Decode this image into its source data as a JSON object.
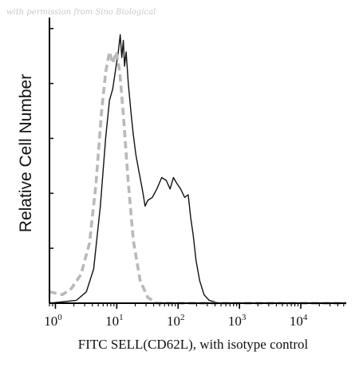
{
  "watermark": "with permission from Sino Biological",
  "chart_data": {
    "type": "line",
    "xlabel": "FITC SELL(CD62L), with isotype control",
    "ylabel": "Relative Cell Number",
    "xscale": "log",
    "xlim": [
      0.8,
      55000
    ],
    "ylim": [
      0,
      100
    ],
    "x_ticks": [
      {
        "base": "10",
        "exp": "0",
        "value": 1
      },
      {
        "base": "10",
        "exp": "1",
        "value": 10
      },
      {
        "base": "10",
        "exp": "2",
        "value": 100
      },
      {
        "base": "10",
        "exp": "3",
        "value": 1000
      },
      {
        "base": "10",
        "exp": "4",
        "value": 10000
      }
    ],
    "grid": false,
    "series": [
      {
        "style": "solid",
        "color": "#111111",
        "points": [
          [
            0.8,
            0
          ],
          [
            2.2,
            1
          ],
          [
            3.2,
            4
          ],
          [
            4.2,
            12
          ],
          [
            5.4,
            34
          ],
          [
            6.6,
            58
          ],
          [
            7.6,
            71
          ],
          [
            8.6,
            75
          ],
          [
            9.6,
            82
          ],
          [
            10.6,
            88
          ],
          [
            11.4,
            94
          ],
          [
            12.1,
            86
          ],
          [
            12.8,
            92
          ],
          [
            13.4,
            83
          ],
          [
            14.2,
            88
          ],
          [
            15.4,
            77
          ],
          [
            17,
            67
          ],
          [
            18.6,
            59
          ],
          [
            20.5,
            52
          ],
          [
            23,
            46
          ],
          [
            26,
            40
          ],
          [
            29,
            34
          ],
          [
            32,
            36
          ],
          [
            38,
            37
          ],
          [
            45,
            40
          ],
          [
            54,
            44
          ],
          [
            64,
            43
          ],
          [
            74,
            40
          ],
          [
            84,
            44
          ],
          [
            95,
            42
          ],
          [
            110,
            40
          ],
          [
            128,
            37
          ],
          [
            146,
            38
          ],
          [
            160,
            30
          ],
          [
            176,
            24
          ],
          [
            196,
            15
          ],
          [
            224,
            8
          ],
          [
            264,
            3
          ],
          [
            320,
            1
          ],
          [
            480,
            0
          ],
          [
            55000,
            0
          ]
        ]
      },
      {
        "style": "dashed",
        "color": "#b9b9b9",
        "points": [
          [
            0.8,
            4
          ],
          [
            1.3,
            3
          ],
          [
            1.8,
            5
          ],
          [
            2.6,
            10
          ],
          [
            3.6,
            21
          ],
          [
            4.6,
            42
          ],
          [
            5.6,
            66
          ],
          [
            6.6,
            81
          ],
          [
            7.6,
            88
          ],
          [
            8.6,
            84
          ],
          [
            9.8,
            88
          ],
          [
            11.2,
            81
          ],
          [
            12.8,
            66
          ],
          [
            15.2,
            44
          ],
          [
            18.6,
            22
          ],
          [
            24,
            8
          ],
          [
            32,
            2
          ],
          [
            45,
            0
          ],
          [
            55000,
            0
          ]
        ]
      }
    ]
  }
}
